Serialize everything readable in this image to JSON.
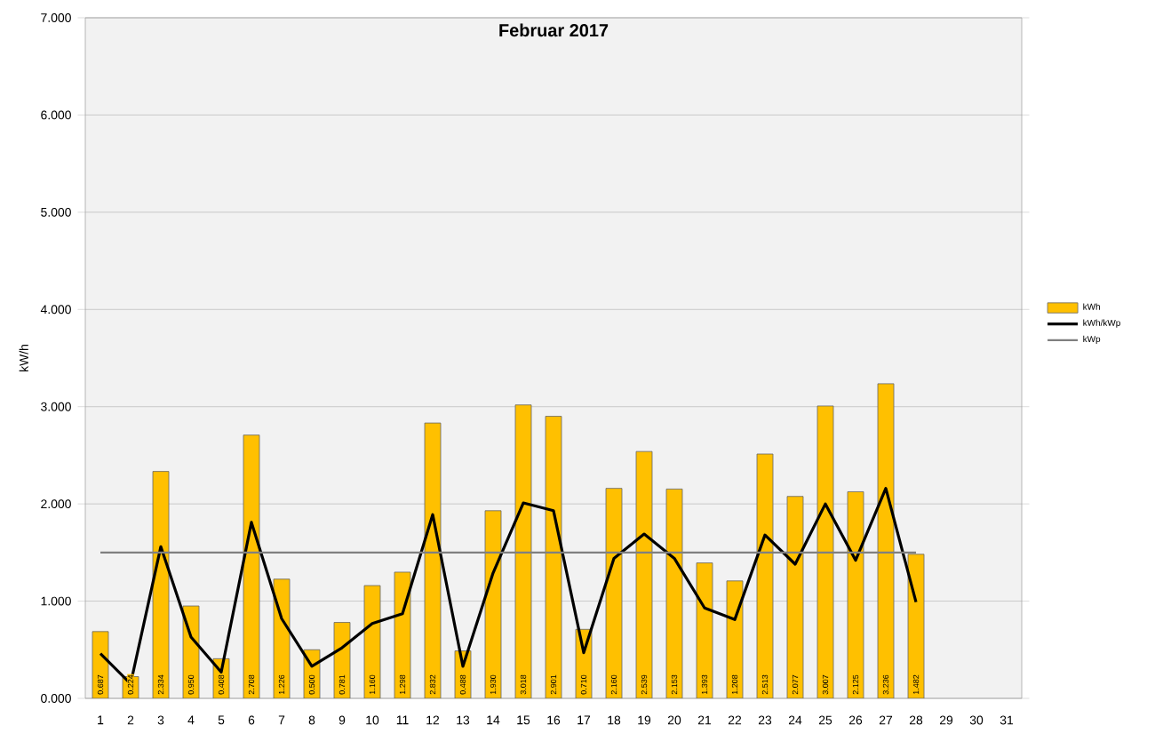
{
  "chart_data": {
    "type": "bar",
    "title": "Februar 2017",
    "ylabel": "kW/h",
    "categories": [
      "1",
      "2",
      "3",
      "4",
      "5",
      "6",
      "7",
      "8",
      "9",
      "10",
      "11",
      "12",
      "13",
      "14",
      "15",
      "16",
      "17",
      "18",
      "19",
      "20",
      "21",
      "22",
      "23",
      "24",
      "25",
      "26",
      "27",
      "28",
      "29",
      "30",
      "31"
    ],
    "series": [
      {
        "name": "kWh",
        "color": "#ffc000",
        "values": [
          0.687,
          0.224,
          2.334,
          0.95,
          0.408,
          2.708,
          1.226,
          0.5,
          0.781,
          1.16,
          1.298,
          2.832,
          0.488,
          1.93,
          3.018,
          2.901,
          0.71,
          2.16,
          2.539,
          2.153,
          1.393,
          1.208,
          2.513,
          2.077,
          3.007,
          2.125,
          3.236,
          1.482,
          null,
          null,
          null
        ],
        "value_labels": [
          "0.687",
          "0.224",
          "2.334",
          "0.950",
          "0.408",
          "2.708",
          "1.226",
          "0.500",
          "0.781",
          "1.160",
          "1.298",
          "2.832",
          "0.488",
          "1.930",
          "3.018",
          "2.901",
          "0.710",
          "2.160",
          "2.539",
          "2.153",
          "1.393",
          "1.208",
          "2.513",
          "2.077",
          "3.007",
          "2.125",
          "3.236",
          "1.482",
          null,
          null,
          null
        ]
      },
      {
        "name": "kWh/kWp",
        "type": "line",
        "color": "#000000",
        "values": [
          0.46,
          0.15,
          1.56,
          0.63,
          0.27,
          1.81,
          0.82,
          0.33,
          0.52,
          0.77,
          0.87,
          1.89,
          0.33,
          1.29,
          2.01,
          1.93,
          0.47,
          1.44,
          1.69,
          1.44,
          0.93,
          0.81,
          1.68,
          1.38,
          2.0,
          1.42,
          2.16,
          0.99,
          null,
          null,
          null
        ]
      },
      {
        "name": "kWp",
        "type": "line",
        "color": "#808080",
        "values": [
          1.5,
          1.5,
          1.5,
          1.5,
          1.5,
          1.5,
          1.5,
          1.5,
          1.5,
          1.5,
          1.5,
          1.5,
          1.5,
          1.5,
          1.5,
          1.5,
          1.5,
          1.5,
          1.5,
          1.5,
          1.5,
          1.5,
          1.5,
          1.5,
          1.5,
          1.5,
          1.5,
          1.5,
          null,
          null,
          null
        ]
      }
    ],
    "ylim": [
      0,
      7
    ],
    "yticks": [
      {
        "value": 0,
        "label": "0.000"
      },
      {
        "value": 1,
        "label": "1.000"
      },
      {
        "value": 2,
        "label": "2.000"
      },
      {
        "value": 3,
        "label": "3.000"
      },
      {
        "value": 4,
        "label": "4.000"
      },
      {
        "value": 5,
        "label": "5.000"
      },
      {
        "value": 6,
        "label": "6.000"
      },
      {
        "value": 7,
        "label": "7.000"
      }
    ],
    "grid": "y",
    "legend": "right",
    "marker": "none",
    "line_style": "solid"
  }
}
